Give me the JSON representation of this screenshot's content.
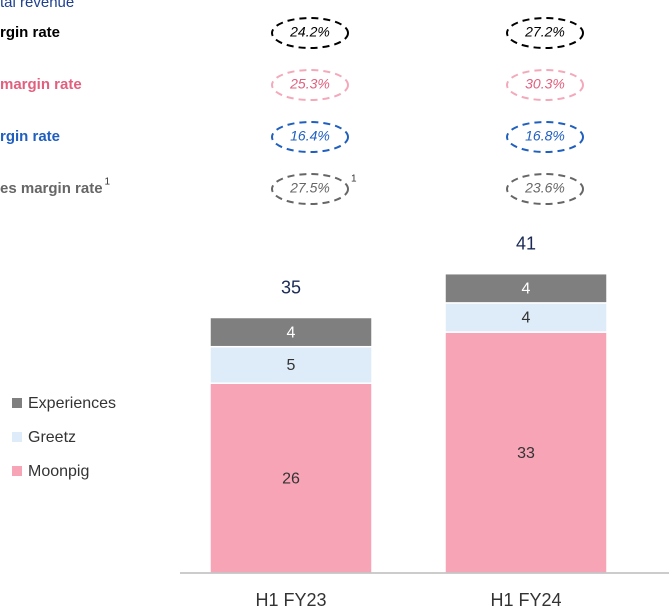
{
  "chart_data": {
    "type": "stacked_bar",
    "subtitle": "tal revenue",
    "categories": [
      "H1 FY23",
      "H1 FY24"
    ],
    "series": [
      {
        "name": "Moonpig",
        "color": "#f7a4b6",
        "values": [
          26,
          33
        ]
      },
      {
        "name": "Greetz",
        "color": "#deebf9",
        "values": [
          5,
          4
        ]
      },
      {
        "name": "Experiences",
        "color": "#7f7f7f",
        "values": [
          4,
          4
        ]
      }
    ],
    "totals": [
      35,
      41
    ],
    "rates": [
      {
        "name": "rgin rate",
        "color": "#000000",
        "values": [
          24.2,
          27.2
        ],
        "value_labels": [
          "24.2%",
          "27.2%"
        ]
      },
      {
        "name": "margin rate",
        "color": "#e0607e",
        "values": [
          25.3,
          30.3
        ],
        "value_labels": [
          "25.3%",
          "30.3%"
        ]
      },
      {
        "name": "rgin rate",
        "color": "#1f5fbf",
        "values": [
          16.4,
          16.8
        ],
        "value_labels": [
          "16.4%",
          "16.8%"
        ]
      },
      {
        "name": "es margin rate",
        "color": "#666666",
        "values": [
          27.5,
          23.6
        ],
        "value_labels": [
          "27.5%",
          "23.6%"
        ],
        "note": "1"
      }
    ]
  }
}
